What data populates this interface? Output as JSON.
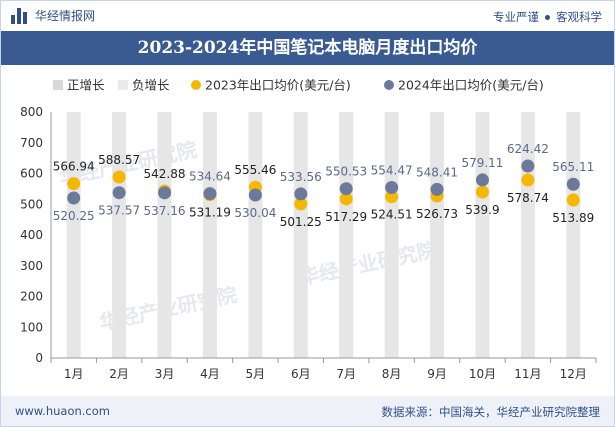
{
  "header": {
    "brand": "华经情报网",
    "tag_left": "专业严谨",
    "tag_right": "客观科学"
  },
  "footer": {
    "website": "www.huaon.com",
    "source": "数据来源：中国海关，华经产业研究院整理"
  },
  "colors": {
    "header_band": "#3a5a92",
    "accent_text": "#2f4f8a",
    "series_2023": "#f5b800",
    "series_2024": "#6b7a9a",
    "pos_growth": "#d8d8d8",
    "neg_growth": "#eaeaea"
  },
  "chart_data": {
    "type": "scatter",
    "title": "2023-2024年中国笔记本电脑月度出口均价",
    "categories": [
      "1月",
      "2月",
      "3月",
      "4月",
      "5月",
      "6月",
      "7月",
      "8月",
      "9月",
      "10月",
      "11月",
      "12月"
    ],
    "ylim": [
      0,
      800
    ],
    "yticks": [
      0,
      100,
      200,
      300,
      400,
      500,
      600,
      700,
      800
    ],
    "legend": [
      "正增长",
      "负增长",
      "2023年出口均价(美元/台)",
      "2024年出口均价(美元/台)"
    ],
    "legend_position": "top",
    "series": [
      {
        "name": "2023年出口均价(美元/台)",
        "values": [
          566.94,
          588.57,
          542.88,
          531.19,
          555.46,
          501.25,
          517.29,
          524.51,
          526.73,
          539.9,
          578.74,
          513.89
        ],
        "labels": [
          "566.94",
          "588.57",
          "542.88",
          "531.19",
          "555.46",
          "501.25",
          "517.29",
          "524.51",
          "526.73",
          "539.9",
          "578.74",
          "513.89"
        ]
      },
      {
        "name": "2024年出口均价(美元/台)",
        "values": [
          520.25,
          537.57,
          537.16,
          534.64,
          530.04,
          533.56,
          550.53,
          554.47,
          548.41,
          579.11,
          624.42,
          565.11
        ],
        "labels": [
          "520.25",
          "537.57",
          "537.16",
          "534.64",
          "530.04",
          "533.56",
          "550.53",
          "554.47",
          "548.41",
          "579.11",
          "624.42",
          "565.11"
        ]
      }
    ]
  }
}
